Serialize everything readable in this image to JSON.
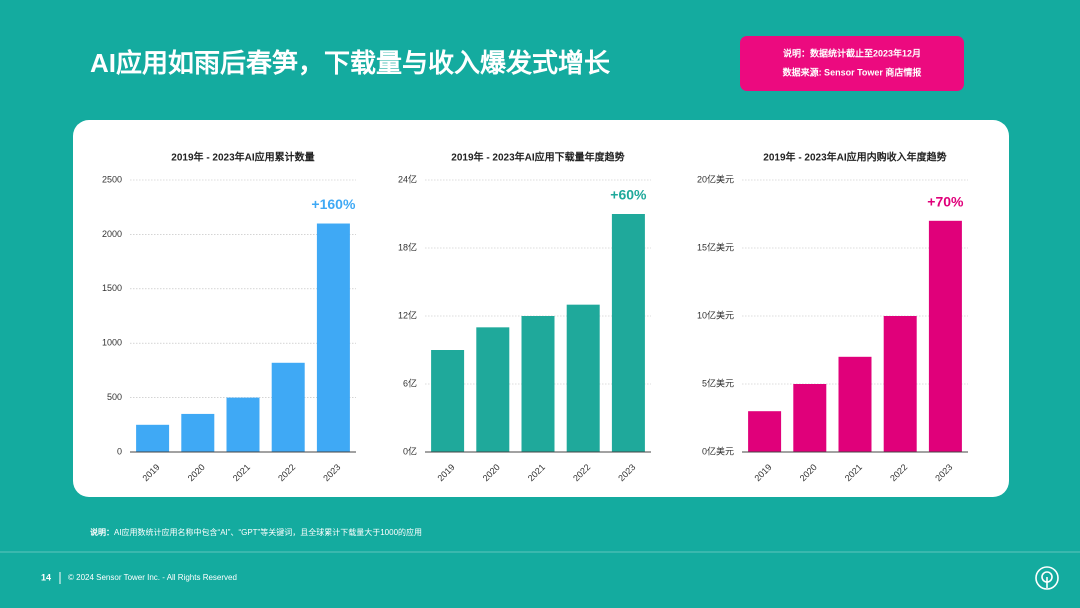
{
  "header": {
    "title": "AI应用如雨后春笋，下载量与收入爆发式增长"
  },
  "info_box": {
    "line1": "说明：数据统计截止至2023年12月",
    "line2": "数据来源: Sensor Tower 商店情报"
  },
  "chart_data": [
    {
      "type": "bar",
      "title": "2019年 - 2023年AI应用累计数量",
      "annotation": "+160%",
      "color": "#3fa9f5",
      "categories": [
        "2019",
        "2020",
        "2021",
        "2022",
        "2023"
      ],
      "values": [
        250,
        350,
        500,
        820,
        2100
      ],
      "ylim": [
        0,
        2500
      ],
      "yticks": [
        0,
        500,
        1000,
        1500,
        2000,
        2500
      ],
      "grid": true
    },
    {
      "type": "bar",
      "title": "2019年 - 2023年AI应用下载量年度趋势",
      "annotation": "+60%",
      "color": "#1fa99b",
      "categories": [
        "2019",
        "2020",
        "2021",
        "2022",
        "2023"
      ],
      "values": [
        9,
        11,
        12,
        13,
        21
      ],
      "ylim": [
        0,
        24
      ],
      "yticks": [
        {
          "value": 0,
          "label": "0亿"
        },
        {
          "value": 6,
          "label": "6亿"
        },
        {
          "value": 12,
          "label": "12亿"
        },
        {
          "value": 18,
          "label": "18亿"
        },
        {
          "value": 24,
          "label": "24亿"
        }
      ],
      "grid": true
    },
    {
      "type": "bar",
      "title": "2019年 - 2023年AI应用内购收入年度趋势",
      "annotation": "+70%",
      "color": "#e0007a",
      "categories": [
        "2019",
        "2020",
        "2021",
        "2022",
        "2023"
      ],
      "values": [
        3,
        5,
        7,
        10,
        17
      ],
      "ylim": [
        0,
        20
      ],
      "yticks": [
        {
          "value": 0,
          "label": "0亿美元"
        },
        {
          "value": 5,
          "label": "5亿美元"
        },
        {
          "value": 10,
          "label": "10亿美元"
        },
        {
          "value": 15,
          "label": "15亿美元"
        },
        {
          "value": 20,
          "label": "20亿美元"
        }
      ],
      "grid": true
    }
  ],
  "footnote": {
    "label": "说明：",
    "text": "AI应用数统计应用名称中包含“AI”、“GPT”等关键词，且全球累计下载量大于1000的应用"
  },
  "footer": {
    "page": "14",
    "copyright": "© 2024 Sensor Tower Inc. - All Rights Reserved"
  }
}
